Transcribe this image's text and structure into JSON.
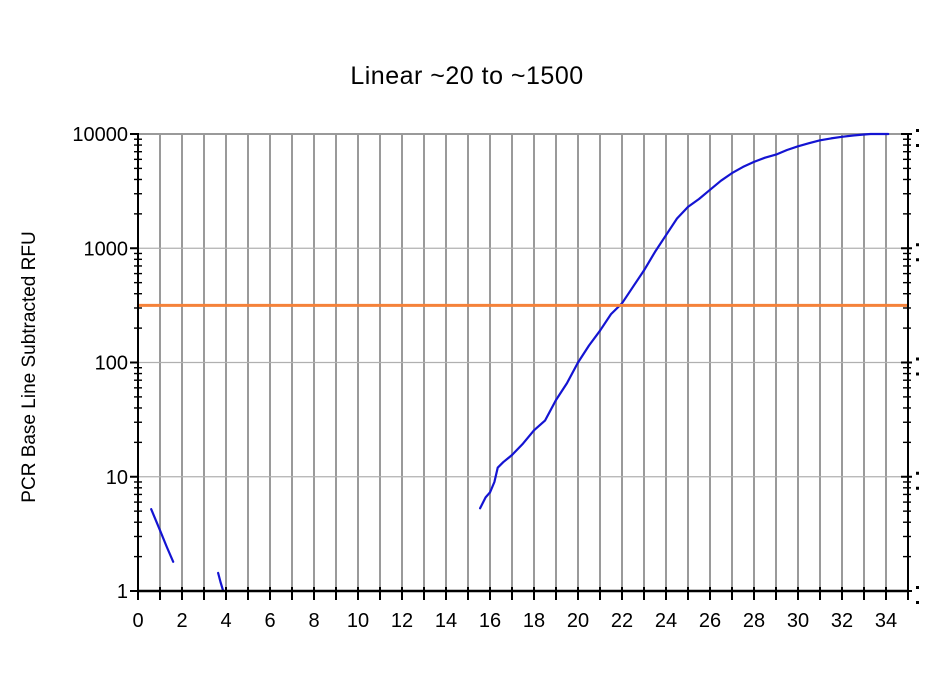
{
  "chart": {
    "title": "Linear ~20 to ~1500",
    "ylabel": "PCR Base Line Subtracted RFU"
  },
  "chart_data": {
    "type": "line",
    "title": "Linear ~20 to ~1500",
    "xlabel": "",
    "ylabel": "PCR Base Line Subtracted RFU",
    "grid": true,
    "legend": false,
    "x_axis": {
      "min": 0,
      "max": 35,
      "tick_step": 1,
      "gridline_step": 1,
      "tick_labels": [
        "0",
        "2",
        "4",
        "6",
        "8",
        "10",
        "12",
        "14",
        "16",
        "18",
        "20",
        "22",
        "24",
        "26",
        "28",
        "30",
        "32",
        "34"
      ]
    },
    "y_axis": {
      "scale": "log",
      "min": 1,
      "max": 10000,
      "tick_labels": [
        "1",
        "10",
        "100",
        "1000",
        "10000"
      ],
      "minor_ticks": "2-9 within each decade"
    },
    "threshold_line": {
      "name": "threshold",
      "orientation": "horizontal",
      "value": 316,
      "color": "#f5823a"
    },
    "series": [
      {
        "name": "amplification curve",
        "color": "#1414d2",
        "points": [
          [
            15.55,
            5.3
          ],
          [
            15.8,
            6.6
          ],
          [
            16.0,
            7.3
          ],
          [
            16.2,
            9.0
          ],
          [
            16.35,
            12.0
          ],
          [
            16.6,
            13.4
          ],
          [
            17.0,
            15.5
          ],
          [
            17.5,
            19.5
          ],
          [
            18.0,
            25.5
          ],
          [
            18.5,
            31
          ],
          [
            19.0,
            47
          ],
          [
            19.5,
            66
          ],
          [
            20.0,
            100
          ],
          [
            20.5,
            141
          ],
          [
            21.0,
            190
          ],
          [
            21.5,
            265
          ],
          [
            22.0,
            330
          ],
          [
            22.5,
            460
          ],
          [
            23.0,
            640
          ],
          [
            23.5,
            930
          ],
          [
            24.0,
            1300
          ],
          [
            24.5,
            1820
          ],
          [
            25.0,
            2300
          ],
          [
            25.5,
            2700
          ],
          [
            26.0,
            3250
          ],
          [
            26.5,
            3900
          ],
          [
            27.0,
            4550
          ],
          [
            27.5,
            5150
          ],
          [
            28.0,
            5700
          ],
          [
            28.5,
            6200
          ],
          [
            29.0,
            6600
          ],
          [
            29.5,
            7250
          ],
          [
            30.0,
            7800
          ],
          [
            30.5,
            8300
          ],
          [
            31.0,
            8800
          ],
          [
            31.5,
            9150
          ],
          [
            32.0,
            9450
          ],
          [
            32.5,
            9700
          ],
          [
            33.0,
            9900
          ],
          [
            33.3,
            10000
          ],
          [
            34.1,
            10000
          ]
        ]
      },
      {
        "name": "baseline artifact 1",
        "color": "#1414d2",
        "points": [
          [
            0.6,
            5.2
          ],
          [
            1.0,
            3.4
          ],
          [
            1.3,
            2.45
          ],
          [
            1.6,
            1.8
          ]
        ]
      },
      {
        "name": "baseline artifact 2",
        "color": "#1414d2",
        "points": [
          [
            3.64,
            1.44
          ],
          [
            3.75,
            1.2
          ],
          [
            3.86,
            1.02
          ]
        ]
      }
    ]
  },
  "colors": {
    "curve": "#1414d2",
    "threshold": "#f5823a",
    "grid_vertical": "#9a9a9a",
    "grid_horizontal": "#b0b0b0",
    "axis": "#000000",
    "background": "#ffffff",
    "text": "#000000"
  }
}
